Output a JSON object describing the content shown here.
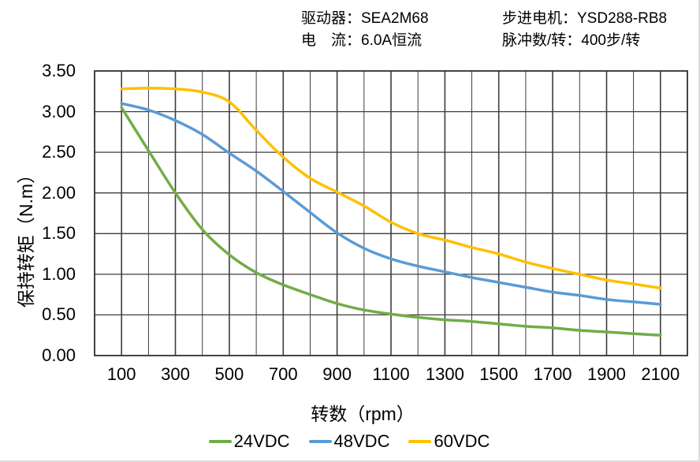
{
  "header": {
    "driver": "驱动器：SEA2M68",
    "current": "电　流：6.0A恒流",
    "motor": "步进电机：YSD288-RB8",
    "pulses": "脉冲数/转：400步/转"
  },
  "chart_data": {
    "type": "line",
    "title": "",
    "xlabel": "转数（rpm）",
    "ylabel": "保持转矩（N.m）",
    "xlim": [
      0,
      2200
    ],
    "ylim": [
      0,
      3.5
    ],
    "grid": "on",
    "x_minor_step_rpm": 100,
    "x_major_tick_values": [
      100,
      300,
      500,
      700,
      900,
      1100,
      1300,
      1500,
      1700,
      1900,
      2100
    ],
    "x_tick_labels": [
      "100",
      "300",
      "500",
      "700",
      "900",
      "1100",
      "1300",
      "1500",
      "1700",
      "1900",
      "2100"
    ],
    "y_tick_values": [
      0,
      0.5,
      1.0,
      1.5,
      2.0,
      2.5,
      3.0,
      3.5
    ],
    "y_tick_labels": [
      "0.00",
      "0.50",
      "1.00",
      "1.50",
      "2.00",
      "2.50",
      "3.00",
      "3.50"
    ],
    "legend_position": "bottom",
    "x": [
      100,
      200,
      300,
      400,
      500,
      600,
      700,
      800,
      900,
      1000,
      1100,
      1200,
      1300,
      1400,
      1500,
      1600,
      1700,
      1800,
      1900,
      2000,
      2100
    ],
    "series": [
      {
        "name": "24VDC",
        "color": "#70AD47",
        "values": [
          3.05,
          2.52,
          2.0,
          1.55,
          1.24,
          1.02,
          0.87,
          0.75,
          0.64,
          0.56,
          0.51,
          0.47,
          0.44,
          0.42,
          0.39,
          0.36,
          0.34,
          0.31,
          0.29,
          0.27,
          0.25
        ]
      },
      {
        "name": "48VDC",
        "color": "#5B9BD5",
        "values": [
          3.1,
          3.02,
          2.89,
          2.72,
          2.49,
          2.27,
          2.02,
          1.76,
          1.51,
          1.32,
          1.19,
          1.1,
          1.03,
          0.96,
          0.9,
          0.84,
          0.78,
          0.74,
          0.69,
          0.66,
          0.63
        ]
      },
      {
        "name": "60VDC",
        "color": "#FFC000",
        "values": [
          3.28,
          3.29,
          3.28,
          3.24,
          3.12,
          2.77,
          2.44,
          2.18,
          2.01,
          1.84,
          1.64,
          1.5,
          1.42,
          1.33,
          1.25,
          1.15,
          1.07,
          1.0,
          0.93,
          0.88,
          0.83
        ]
      }
    ]
  },
  "style_colors": {
    "grid": "#3d3d3d",
    "border": "#2f2f2f",
    "text": "#000000",
    "background": "#ffffff"
  }
}
